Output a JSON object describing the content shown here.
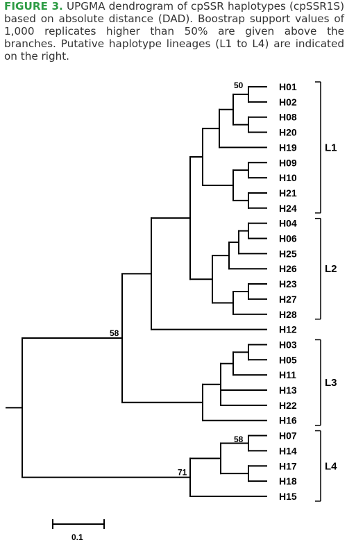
{
  "figure": {
    "label": "FIGURE 3.",
    "caption": "UPGMA dendrogram of cpSSR haplotypes (cpSSR1S) based on absolute distance (DAD). Boostrap support values of 1,000 replicates higher than 50% are given above the branches. Putative haplotype lineages (L1 to L4) are indicated on the right."
  },
  "tips": [
    "H01",
    "H02",
    "H08",
    "H20",
    "H19",
    "H09",
    "H10",
    "H21",
    "H24",
    "H04",
    "H06",
    "H25",
    "H26",
    "H23",
    "H27",
    "H28",
    "H12",
    "H03",
    "H05",
    "H11",
    "H13",
    "H22",
    "H16",
    "H07",
    "H14",
    "H17",
    "H18",
    "H15"
  ],
  "bootstrap": [
    "50",
    "58",
    "58",
    "71"
  ],
  "lineages": [
    "L1",
    "L2",
    "L3",
    "L4"
  ],
  "scale_bar": "0.1"
}
